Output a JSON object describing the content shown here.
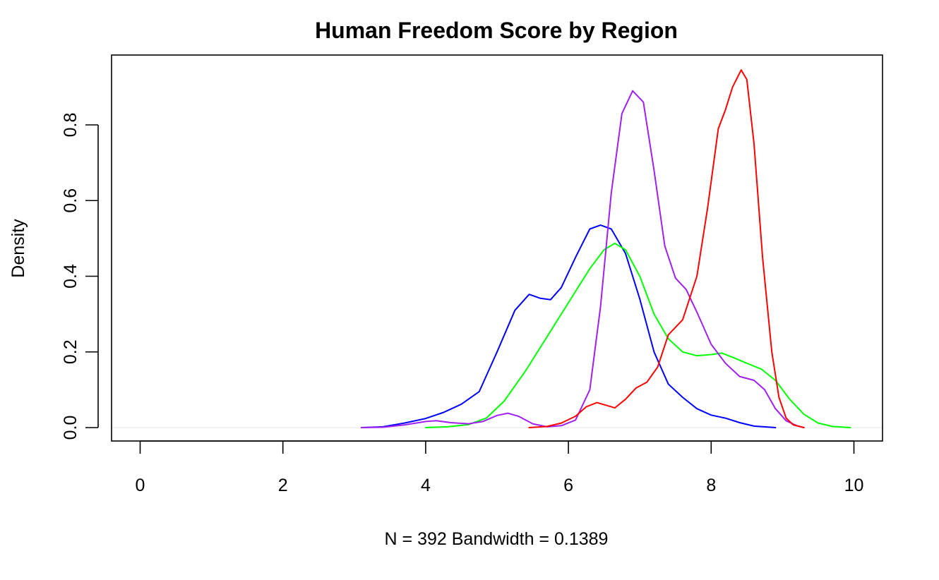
{
  "chart_data": {
    "type": "line",
    "title": "Human Freedom Score by Region",
    "xlabel": "N = 392   Bandwidth = 0.1389",
    "ylabel": "Density",
    "xlim": [
      0,
      10
    ],
    "ylim": [
      0,
      0.94
    ],
    "x_ticks": [
      "0",
      "2",
      "4",
      "6",
      "8",
      "10"
    ],
    "y_ticks": [
      "0.0",
      "0.2",
      "0.4",
      "0.6",
      "0.8"
    ],
    "grid": false,
    "baseline_color": "#eeeeee",
    "series": [
      {
        "color": "#0000ff",
        "points": [
          [
            3.1,
            0
          ],
          [
            3.4,
            0.002
          ],
          [
            3.7,
            0.012
          ],
          [
            4.0,
            0.024
          ],
          [
            4.25,
            0.04
          ],
          [
            4.5,
            0.062
          ],
          [
            4.75,
            0.095
          ],
          [
            5.0,
            0.2
          ],
          [
            5.25,
            0.31
          ],
          [
            5.45,
            0.352
          ],
          [
            5.6,
            0.342
          ],
          [
            5.75,
            0.338
          ],
          [
            5.9,
            0.37
          ],
          [
            6.1,
            0.45
          ],
          [
            6.3,
            0.525
          ],
          [
            6.45,
            0.535
          ],
          [
            6.6,
            0.525
          ],
          [
            6.8,
            0.46
          ],
          [
            7.0,
            0.34
          ],
          [
            7.2,
            0.2
          ],
          [
            7.4,
            0.115
          ],
          [
            7.6,
            0.08
          ],
          [
            7.8,
            0.05
          ],
          [
            8.0,
            0.033
          ],
          [
            8.2,
            0.025
          ],
          [
            8.4,
            0.013
          ],
          [
            8.6,
            0.004
          ],
          [
            8.9,
            0
          ]
        ]
      },
      {
        "color": "#00ff00",
        "points": [
          [
            4.0,
            0
          ],
          [
            4.3,
            0.002
          ],
          [
            4.6,
            0.008
          ],
          [
            4.85,
            0.025
          ],
          [
            5.1,
            0.07
          ],
          [
            5.4,
            0.15
          ],
          [
            5.7,
            0.24
          ],
          [
            6.0,
            0.33
          ],
          [
            6.3,
            0.42
          ],
          [
            6.5,
            0.47
          ],
          [
            6.65,
            0.487
          ],
          [
            6.8,
            0.47
          ],
          [
            7.0,
            0.4
          ],
          [
            7.2,
            0.3
          ],
          [
            7.4,
            0.235
          ],
          [
            7.6,
            0.2
          ],
          [
            7.8,
            0.19
          ],
          [
            8.0,
            0.193
          ],
          [
            8.15,
            0.197
          ],
          [
            8.3,
            0.186
          ],
          [
            8.5,
            0.17
          ],
          [
            8.7,
            0.155
          ],
          [
            8.9,
            0.125
          ],
          [
            9.1,
            0.075
          ],
          [
            9.3,
            0.035
          ],
          [
            9.5,
            0.012
          ],
          [
            9.7,
            0.003
          ],
          [
            9.95,
            0
          ]
        ]
      },
      {
        "color": "#a020f0",
        "points": [
          [
            3.1,
            0
          ],
          [
            3.4,
            0.001
          ],
          [
            3.7,
            0.007
          ],
          [
            4.0,
            0.016
          ],
          [
            4.15,
            0.018
          ],
          [
            4.35,
            0.013
          ],
          [
            4.6,
            0.01
          ],
          [
            4.8,
            0.016
          ],
          [
            5.0,
            0.032
          ],
          [
            5.15,
            0.038
          ],
          [
            5.3,
            0.03
          ],
          [
            5.5,
            0.01
          ],
          [
            5.7,
            0.002
          ],
          [
            5.9,
            0.005
          ],
          [
            6.1,
            0.02
          ],
          [
            6.3,
            0.1
          ],
          [
            6.45,
            0.32
          ],
          [
            6.6,
            0.62
          ],
          [
            6.75,
            0.83
          ],
          [
            6.9,
            0.89
          ],
          [
            7.05,
            0.86
          ],
          [
            7.2,
            0.68
          ],
          [
            7.35,
            0.48
          ],
          [
            7.5,
            0.395
          ],
          [
            7.65,
            0.365
          ],
          [
            7.8,
            0.305
          ],
          [
            8.0,
            0.22
          ],
          [
            8.2,
            0.17
          ],
          [
            8.4,
            0.135
          ],
          [
            8.6,
            0.125
          ],
          [
            8.75,
            0.1
          ],
          [
            8.9,
            0.05
          ],
          [
            9.05,
            0.018
          ],
          [
            9.2,
            0.005
          ],
          [
            9.3,
            0
          ]
        ]
      },
      {
        "color": "#ff0000",
        "points": [
          [
            5.45,
            0
          ],
          [
            5.7,
            0.003
          ],
          [
            5.9,
            0.012
          ],
          [
            6.1,
            0.03
          ],
          [
            6.25,
            0.055
          ],
          [
            6.4,
            0.066
          ],
          [
            6.55,
            0.058
          ],
          [
            6.65,
            0.052
          ],
          [
            6.8,
            0.075
          ],
          [
            6.95,
            0.105
          ],
          [
            7.1,
            0.12
          ],
          [
            7.25,
            0.16
          ],
          [
            7.4,
            0.245
          ],
          [
            7.6,
            0.285
          ],
          [
            7.8,
            0.4
          ],
          [
            7.95,
            0.58
          ],
          [
            8.1,
            0.79
          ],
          [
            8.2,
            0.84
          ],
          [
            8.3,
            0.9
          ],
          [
            8.42,
            0.945
          ],
          [
            8.5,
            0.92
          ],
          [
            8.6,
            0.75
          ],
          [
            8.72,
            0.45
          ],
          [
            8.85,
            0.2
          ],
          [
            8.95,
            0.08
          ],
          [
            9.05,
            0.025
          ],
          [
            9.15,
            0.007
          ],
          [
            9.3,
            0
          ]
        ]
      }
    ]
  }
}
